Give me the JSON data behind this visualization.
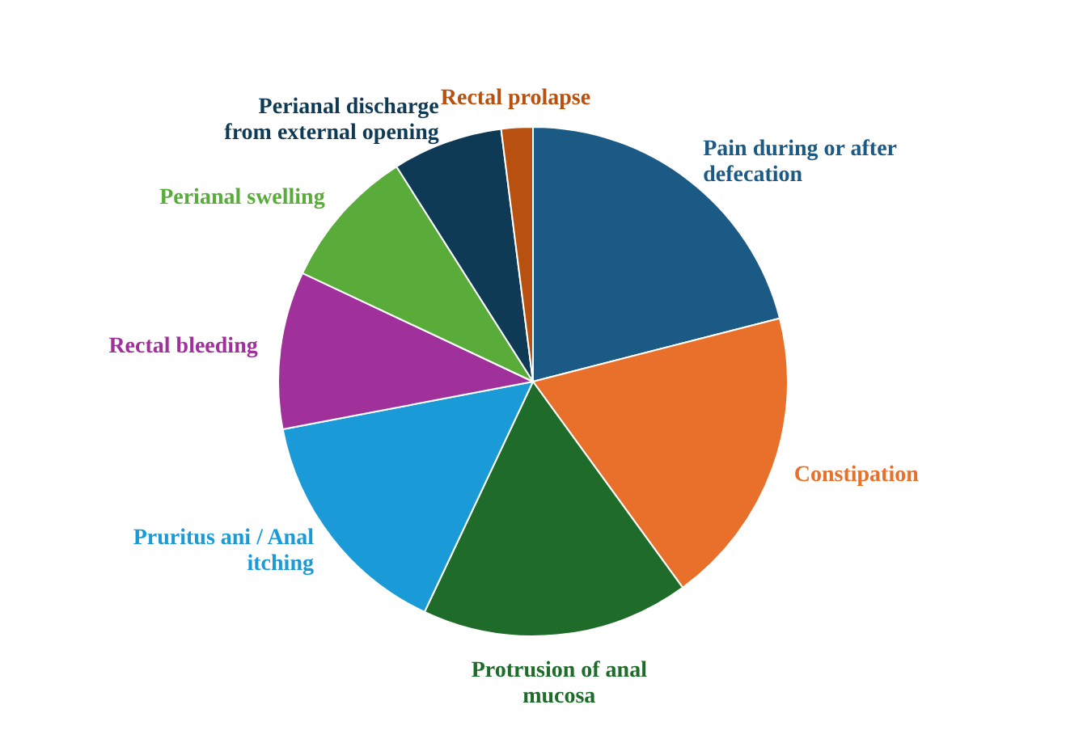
{
  "chart_data": {
    "type": "pie",
    "categories": [
      "Pain during or after defecation",
      "Constipation",
      "Protrusion of anal mucosa",
      "Pruritus ani / Anal itching",
      "Rectal bleeding",
      "Perianal swelling",
      "Perianal discharge from external opening",
      "Rectal prolapse"
    ],
    "values": [
      21,
      19,
      17,
      15,
      10,
      9,
      7,
      2
    ],
    "colors": [
      "#1b5a85",
      "#e8702a",
      "#1e6b2a",
      "#1a9ad6",
      "#a0309a",
      "#5aac3a",
      "#0f3a55",
      "#b85010"
    ],
    "legend": false
  }
}
